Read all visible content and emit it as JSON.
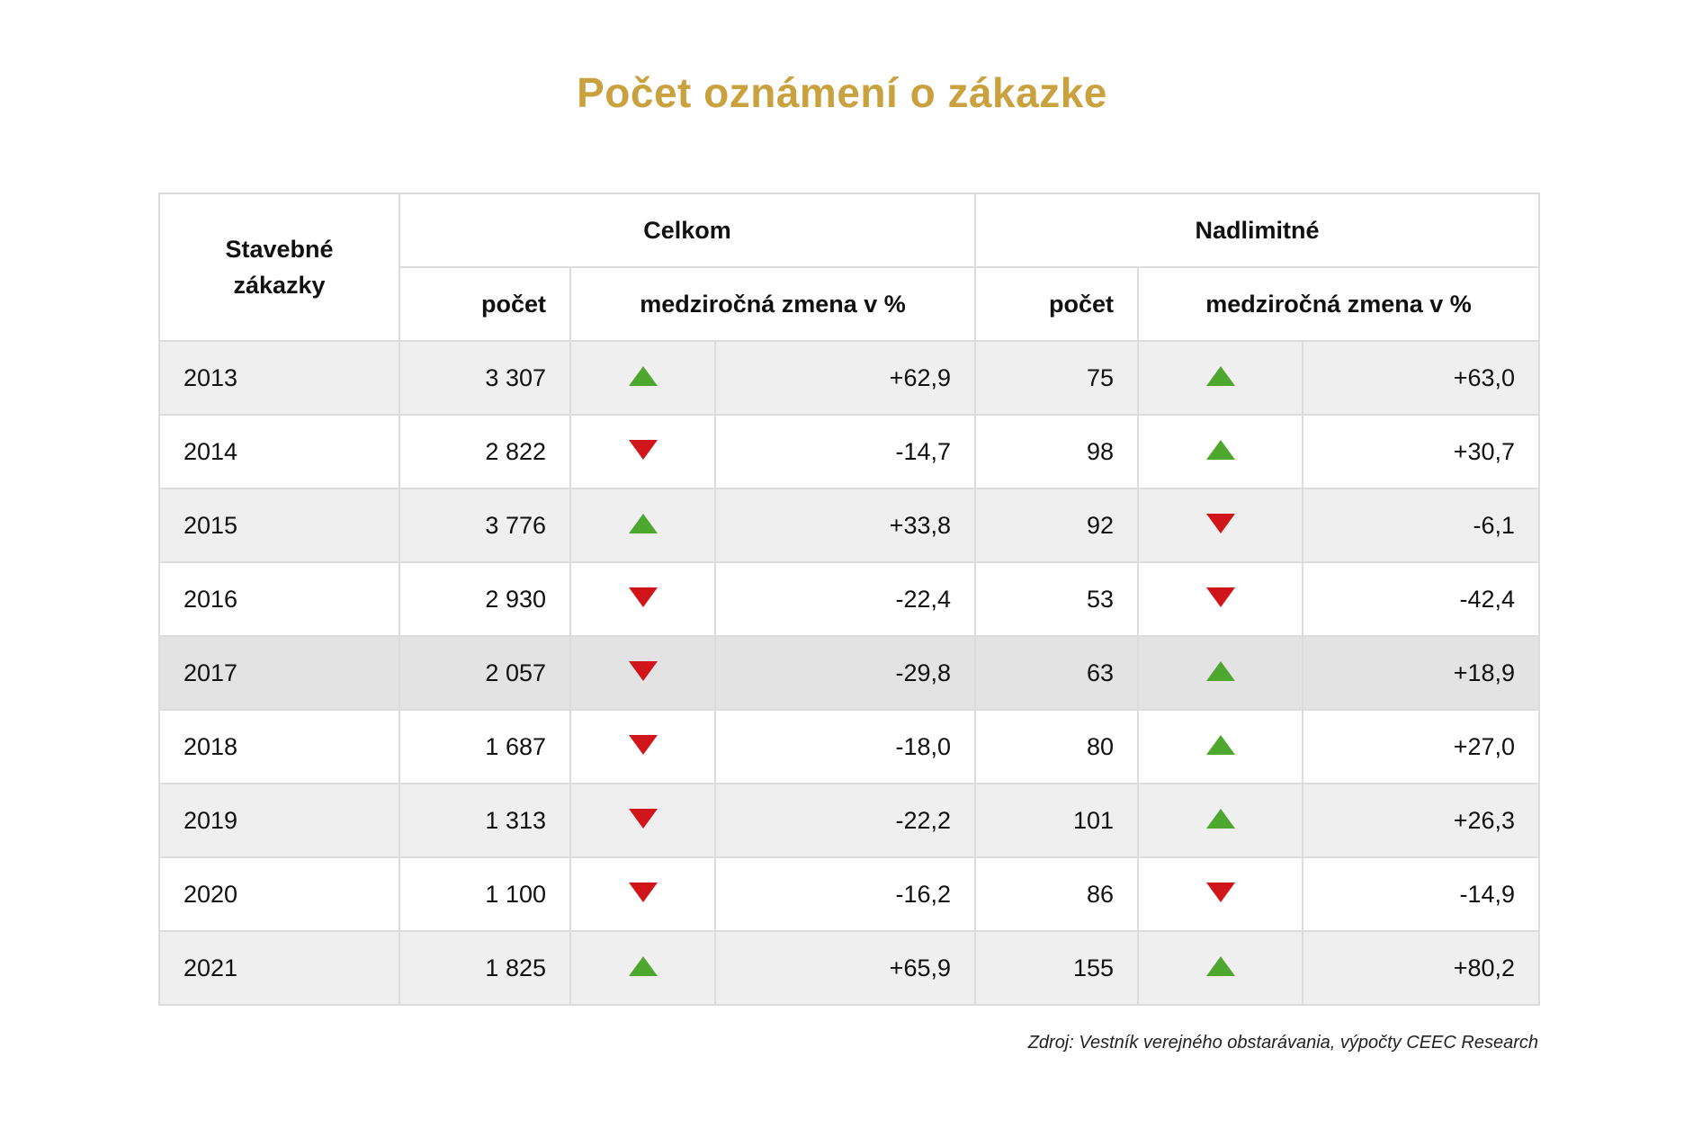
{
  "title": "Počet oznámení o zákazke",
  "header": {
    "row_label": "Stavebné zákazky",
    "group1": "Celkom",
    "group2": "Nadlimitné",
    "count": "počet",
    "change": "medziročná zmena v %"
  },
  "colors": {
    "title": "#c9a23f",
    "up": "#4ea72e",
    "down": "#d0161b"
  },
  "rows": [
    {
      "year": "2013",
      "total": "3 307",
      "total_dir": "up",
      "total_chg": "+62,9",
      "above": "75",
      "above_dir": "up",
      "above_chg": "+63,0"
    },
    {
      "year": "2014",
      "total": "2 822",
      "total_dir": "down",
      "total_chg": "-14,7",
      "above": "98",
      "above_dir": "up",
      "above_chg": "+30,7"
    },
    {
      "year": "2015",
      "total": "3 776",
      "total_dir": "up",
      "total_chg": "+33,8",
      "above": "92",
      "above_dir": "down",
      "above_chg": "-6,1"
    },
    {
      "year": "2016",
      "total": "2 930",
      "total_dir": "down",
      "total_chg": "-22,4",
      "above": "53",
      "above_dir": "down",
      "above_chg": "-42,4"
    },
    {
      "year": "2017",
      "total": "2 057",
      "total_dir": "down",
      "total_chg": "-29,8",
      "above": "63",
      "above_dir": "up",
      "above_chg": "+18,9"
    },
    {
      "year": "2018",
      "total": "1 687",
      "total_dir": "down",
      "total_chg": "-18,0",
      "above": "80",
      "above_dir": "up",
      "above_chg": "+27,0"
    },
    {
      "year": "2019",
      "total": "1 313",
      "total_dir": "down",
      "total_chg": "-22,2",
      "above": "101",
      "above_dir": "up",
      "above_chg": "+26,3"
    },
    {
      "year": "2020",
      "total": "1 100",
      "total_dir": "down",
      "total_chg": "-16,2",
      "above": "86",
      "above_dir": "down",
      "above_chg": "-14,9"
    },
    {
      "year": "2021",
      "total": "1 825",
      "total_dir": "up",
      "total_chg": "+65,9",
      "above": "155",
      "above_dir": "up",
      "above_chg": "+80,2"
    }
  ],
  "source": "Zdroj: Vestník verejného obstarávania, výpočty CEEC Research"
}
